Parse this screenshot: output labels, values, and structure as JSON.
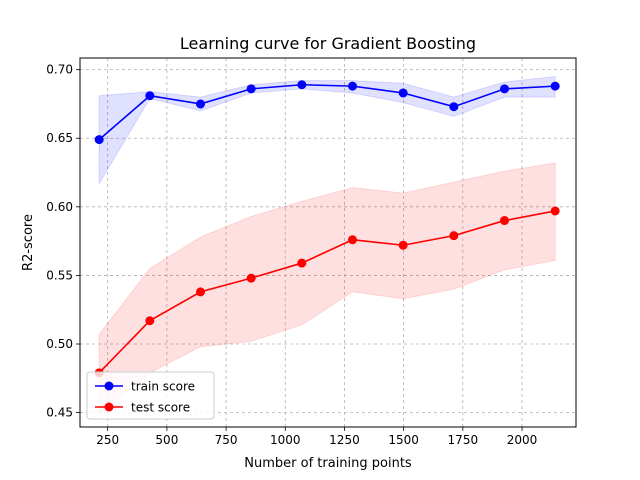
{
  "chart_data": {
    "type": "line",
    "title": "Learning curve for Gradient Boosting",
    "xlabel": "Number of training points",
    "ylabel": "R2-score",
    "xlim": [
      133,
      2228
    ],
    "ylim": [
      0.4395,
      0.7085
    ],
    "xticks": [
      250,
      500,
      750,
      1000,
      1250,
      1500,
      1750,
      2000
    ],
    "xtick_labels": [
      "250",
      "500",
      "750",
      "1000",
      "1250",
      "1500",
      "1750",
      "2000"
    ],
    "yticks": [
      0.45,
      0.5,
      0.55,
      0.6,
      0.65,
      0.7
    ],
    "ytick_labels": [
      "0.45",
      "0.50",
      "0.55",
      "0.60",
      "0.65",
      "0.70"
    ],
    "grid": true,
    "legend_position": "lower-left",
    "x": [
      214,
      428,
      642,
      856,
      1070,
      1284,
      1498,
      1712,
      1926,
      2140
    ],
    "series": [
      {
        "name": "train score",
        "color": "#0000ff",
        "band_color": "#0000ff",
        "values": [
          0.649,
          0.681,
          0.675,
          0.686,
          0.689,
          0.688,
          0.683,
          0.673,
          0.686,
          0.688
        ],
        "upper": [
          0.681,
          0.684,
          0.68,
          0.689,
          0.692,
          0.692,
          0.69,
          0.68,
          0.691,
          0.695
        ],
        "lower": [
          0.617,
          0.679,
          0.67,
          0.683,
          0.686,
          0.683,
          0.676,
          0.666,
          0.68,
          0.68
        ]
      },
      {
        "name": "test score",
        "color": "#ff0000",
        "band_color": "#ff0000",
        "values": [
          0.479,
          0.517,
          0.538,
          0.548,
          0.559,
          0.576,
          0.572,
          0.579,
          0.59,
          0.597
        ],
        "upper": [
          0.507,
          0.555,
          0.578,
          0.593,
          0.604,
          0.614,
          0.61,
          0.618,
          0.626,
          0.632
        ],
        "lower": [
          0.449,
          0.479,
          0.498,
          0.502,
          0.514,
          0.538,
          0.533,
          0.54,
          0.554,
          0.561
        ]
      }
    ]
  }
}
